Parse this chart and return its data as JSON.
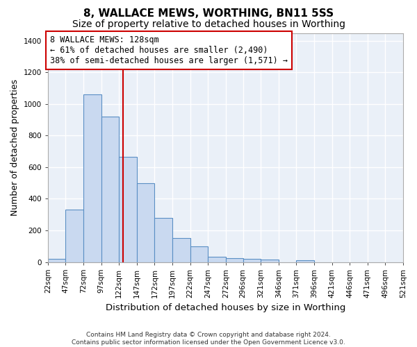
{
  "title": "8, WALLACE MEWS, WORTHING, BN11 5SS",
  "subtitle": "Size of property relative to detached houses in Worthing",
  "xlabel": "Distribution of detached houses by size in Worthing",
  "ylabel": "Number of detached properties",
  "footer": "Contains HM Land Registry data © Crown copyright and database right 2024.\nContains public sector information licensed under the Open Government Licence v3.0.",
  "bar_edges": [
    22,
    47,
    72,
    97,
    122,
    147,
    172,
    197,
    222,
    247,
    272,
    296,
    321,
    346,
    371,
    396,
    421,
    446,
    471,
    496,
    521
  ],
  "bar_heights": [
    20,
    330,
    1060,
    920,
    665,
    498,
    280,
    150,
    100,
    35,
    25,
    22,
    17,
    0,
    12,
    0,
    0,
    0,
    0,
    0
  ],
  "bar_color": "#c9d9f0",
  "bar_edgecolor": "#5a8fc4",
  "property_size": 128,
  "red_line_color": "#cc0000",
  "annotation_text": "8 WALLACE MEWS: 128sqm\n← 61% of detached houses are smaller (2,490)\n38% of semi-detached houses are larger (1,571) →",
  "annotation_box_edgecolor": "#cc0000",
  "ylim": [
    0,
    1450
  ],
  "xlim": [
    22,
    521
  ],
  "tick_labels": [
    "22sqm",
    "47sqm",
    "72sqm",
    "97sqm",
    "122sqm",
    "147sqm",
    "172sqm",
    "197sqm",
    "222sqm",
    "247sqm",
    "272sqm",
    "296sqm",
    "321sqm",
    "346sqm",
    "371sqm",
    "396sqm",
    "421sqm",
    "446sqm",
    "471sqm",
    "496sqm",
    "521sqm"
  ],
  "bg_color": "#eaf0f8",
  "grid_color": "#d8e4f0",
  "title_fontsize": 11,
  "subtitle_fontsize": 10,
  "axis_label_fontsize": 9,
  "tick_fontsize": 7.5,
  "annotation_fontsize": 8.5,
  "footer_fontsize": 6.5
}
